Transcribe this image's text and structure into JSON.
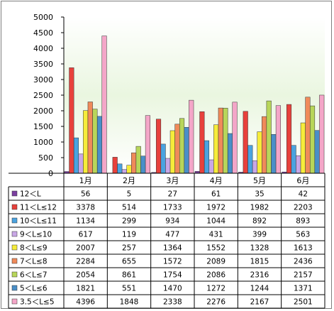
{
  "chart_data": {
    "type": "bar",
    "title": "",
    "xlabel": "",
    "ylabel": "",
    "ylim": [
      0,
      5000
    ],
    "yticks": [
      0,
      500,
      1000,
      1500,
      2000,
      2500,
      3000,
      3500,
      4000,
      4500,
      5000
    ],
    "categories": [
      "1月",
      "2月",
      "3月",
      "4月",
      "5月",
      "6月"
    ],
    "grid": false,
    "legend": "data-table-below",
    "series": [
      {
        "name": "12＜L",
        "color": "#7b3fa0",
        "values": [
          56,
          5,
          27,
          61,
          35,
          42
        ]
      },
      {
        "name": "11＜L≤12",
        "color": "#e8413c",
        "values": [
          3378,
          514,
          1733,
          1972,
          1982,
          2203
        ]
      },
      {
        "name": "10＜L≤11",
        "color": "#4aa3e0",
        "values": [
          1134,
          299,
          934,
          1044,
          892,
          893
        ]
      },
      {
        "name": "9＜L≤10",
        "color": "#c9a7e6",
        "values": [
          617,
          119,
          477,
          431,
          399,
          563
        ]
      },
      {
        "name": "8＜L≤9",
        "color": "#f6ec3a",
        "values": [
          2007,
          257,
          1364,
          1552,
          1328,
          1613
        ]
      },
      {
        "name": "7＜L≤8",
        "color": "#f08a5a",
        "values": [
          2284,
          655,
          1572,
          2089,
          1815,
          2436
        ]
      },
      {
        "name": "6＜L≤7",
        "color": "#b8d65a",
        "values": [
          2054,
          861,
          1754,
          2086,
          2316,
          2157
        ]
      },
      {
        "name": "5＜L≤6",
        "color": "#4a8fc8",
        "values": [
          1821,
          551,
          1470,
          1272,
          1244,
          1371
        ]
      },
      {
        "name": "3.5＜L≤5",
        "color": "#f4a6c8",
        "values": [
          4396,
          1848,
          2338,
          2276,
          2167,
          2501
        ]
      }
    ]
  }
}
